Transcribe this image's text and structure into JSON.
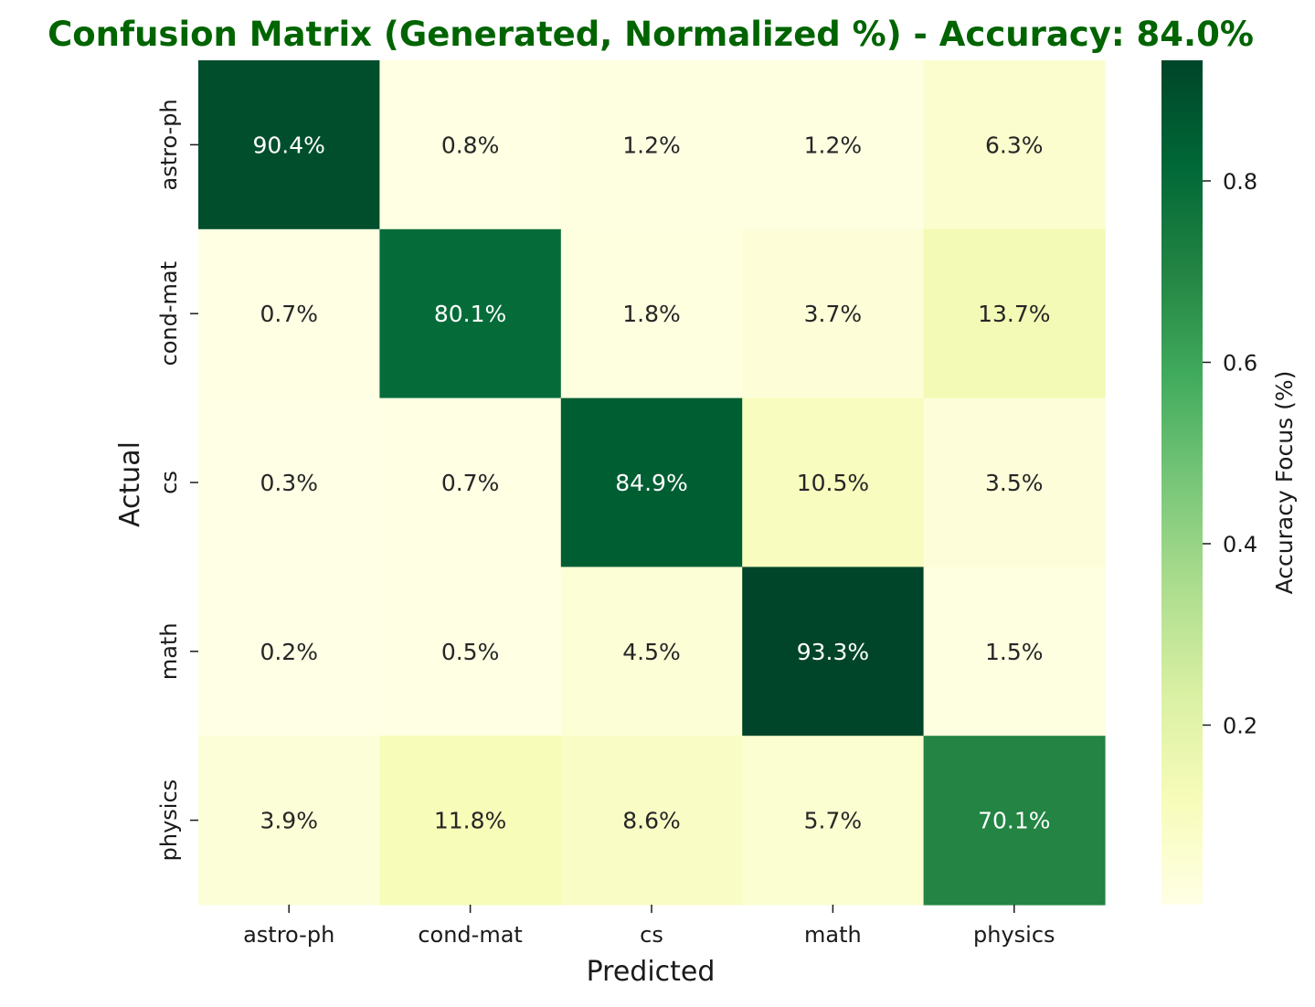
{
  "chart_data": {
    "type": "heatmap",
    "title": "Confusion Matrix (Generated, Normalized %) - Accuracy: 84.0%",
    "xlabel": "Predicted",
    "ylabel": "Actual",
    "x_categories": [
      "astro-ph",
      "cond-mat",
      "cs",
      "math",
      "physics"
    ],
    "y_categories": [
      "astro-ph",
      "cond-mat",
      "cs",
      "math",
      "physics"
    ],
    "values": [
      [
        0.904,
        0.008,
        0.012,
        0.012,
        0.063
      ],
      [
        0.007,
        0.801,
        0.018,
        0.037,
        0.137
      ],
      [
        0.003,
        0.007,
        0.849,
        0.105,
        0.035
      ],
      [
        0.002,
        0.005,
        0.045,
        0.933,
        0.015
      ],
      [
        0.039,
        0.118,
        0.086,
        0.057,
        0.701
      ]
    ],
    "cell_labels": [
      [
        "90.4%",
        "0.8%",
        "1.2%",
        "1.2%",
        "6.3%"
      ],
      [
        "0.7%",
        "80.1%",
        "1.8%",
        "3.7%",
        "13.7%"
      ],
      [
        "0.3%",
        "0.7%",
        "84.9%",
        "10.5%",
        "3.5%"
      ],
      [
        "0.2%",
        "0.5%",
        "4.5%",
        "93.3%",
        "1.5%"
      ],
      [
        "3.9%",
        "11.8%",
        "8.6%",
        "5.7%",
        "70.1%"
      ]
    ],
    "colorbar": {
      "label": "Accuracy Focus (%)",
      "range": [
        0.002,
        0.933
      ],
      "ticks": [
        0.2,
        0.4,
        0.6,
        0.8
      ],
      "tick_labels": [
        "0.2",
        "0.4",
        "0.6",
        "0.8"
      ],
      "colormap": "Greens-YlGn"
    },
    "colors": {
      "title": "#006400",
      "text_dark": "#262626",
      "text_light": "#ffffff"
    },
    "grid": false
  }
}
